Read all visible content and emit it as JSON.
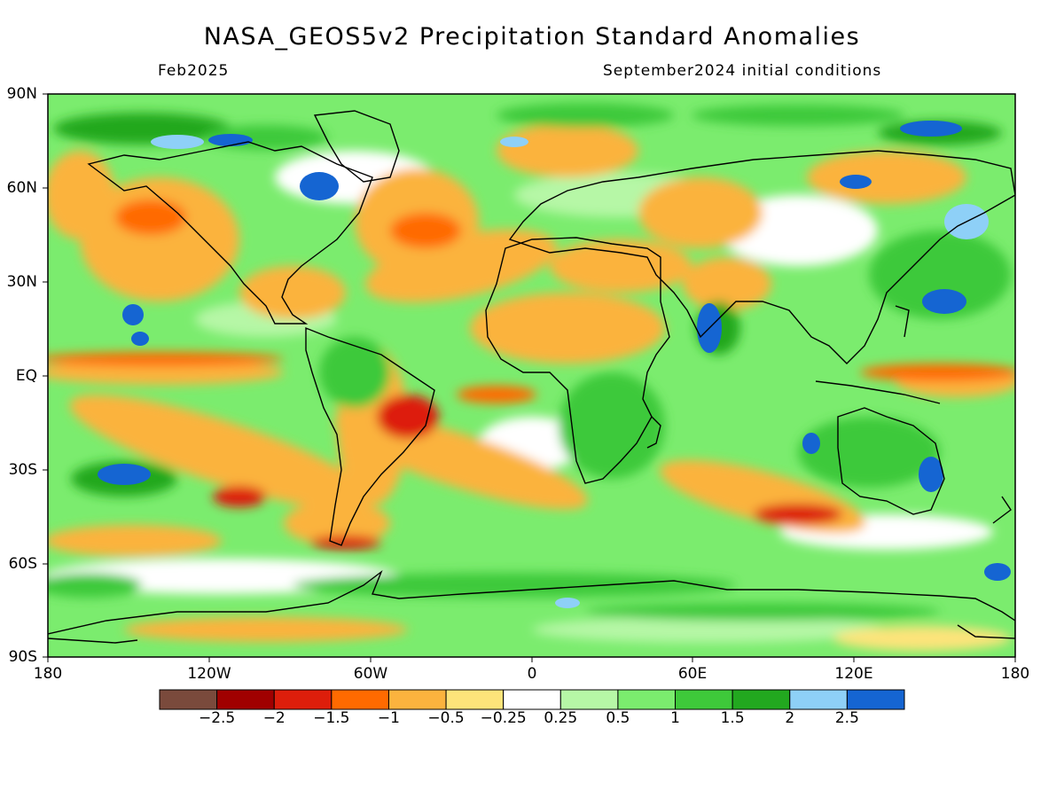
{
  "header": {
    "title": "NASA_GEOS5v2 Precipitation Standard Anomalies",
    "valid_month": "Feb2025",
    "initial_conditions": "September2024 initial conditions"
  },
  "axes": {
    "lat_labels": [
      "90N",
      "60N",
      "30N",
      "EQ",
      "30S",
      "60S",
      "90S"
    ],
    "lon_labels": [
      "180",
      "120W",
      "60W",
      "0",
      "60E",
      "120E",
      "180"
    ]
  },
  "colorbar": {
    "labels": [
      "−2.5",
      "−2",
      "−1.5",
      "−1",
      "−0.5",
      "−0.25",
      "0.25",
      "0.5",
      "1",
      "1.5",
      "2",
      "2.5"
    ],
    "colors": [
      "#7a4a3c",
      "#a00000",
      "#dd1e0b",
      "#ff6a00",
      "#fbb33e",
      "#fde47a",
      "#ffffff",
      "#b6f7a6",
      "#7bec6e",
      "#3ec93a",
      "#22a81f",
      "#8ed0f7",
      "#1565d2"
    ]
  }
}
